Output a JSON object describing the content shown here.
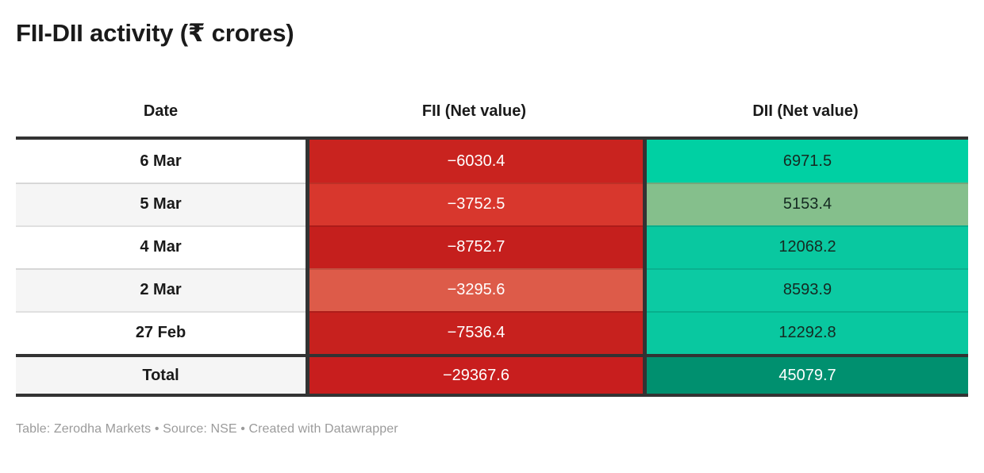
{
  "title": "FII-DII activity (₹ crores)",
  "table": {
    "columns": {
      "date": "Date",
      "fii": "FII (Net value)",
      "dii": "DII (Net value)"
    },
    "rows": [
      {
        "date": "6 Mar",
        "fii": "−6030.4",
        "dii": "6971.5",
        "fii_bg": "#c9231f",
        "fii_color": "#ffffff",
        "dii_bg": "#00d0a3",
        "dii_color": "#152a22"
      },
      {
        "date": "5 Mar",
        "fii": "−3752.5",
        "dii": "5153.4",
        "fii_bg": "#d8372d",
        "fii_color": "#ffffff",
        "dii_bg": "#85bf8c",
        "dii_color": "#152a22"
      },
      {
        "date": "4 Mar",
        "fii": "−8752.7",
        "dii": "12068.2",
        "fii_bg": "#c51f1d",
        "fii_color": "#ffffff",
        "dii_bg": "#09c8a0",
        "dii_color": "#152a22"
      },
      {
        "date": "2 Mar",
        "fii": "−3295.6",
        "dii": "8593.9",
        "fii_bg": "#dd5b49",
        "fii_color": "#ffffff",
        "dii_bg": "#0ccaa3",
        "dii_color": "#152a22"
      },
      {
        "date": "27 Feb",
        "fii": "−7536.4",
        "dii": "12292.8",
        "fii_bg": "#c7211e",
        "fii_color": "#ffffff",
        "dii_bg": "#09c8a0",
        "dii_color": "#152a22"
      }
    ],
    "total": {
      "label": "Total",
      "fii": "−29367.6",
      "dii": "45079.7",
      "fii_bg": "#c81e1e",
      "fii_color": "#ffffff",
      "dii_bg": "#00906f",
      "dii_color": "#ffffff"
    }
  },
  "footer": "Table: Zerodha Markets • Source: NSE • Created with Datawrapper",
  "colors": {
    "border_dark": "#333333",
    "zebra_light": "#f5f5f5",
    "footer_gray": "#9b9b9b",
    "title_text": "#1a1a1a"
  },
  "chart_data": {
    "type": "table",
    "title": "FII-DII activity (₹ crores)",
    "columns": [
      "Date",
      "FII (Net value)",
      "DII (Net value)"
    ],
    "rows": [
      [
        "6 Mar",
        -6030.4,
        6971.5
      ],
      [
        "5 Mar",
        -3752.5,
        5153.4
      ],
      [
        "4 Mar",
        -8752.7,
        12068.2
      ],
      [
        "2 Mar",
        -3295.6,
        8593.9
      ],
      [
        "27 Feb",
        -7536.4,
        12292.8
      ]
    ],
    "total_row": [
      "Total",
      -29367.6,
      45079.7
    ],
    "cell_shading": "FII column shaded red by magnitude of outflow; DII column shaded green-teal by magnitude of inflow; total row uses darkest shades",
    "notes": "Table: Zerodha Markets • Source: NSE • Created with Datawrapper"
  }
}
